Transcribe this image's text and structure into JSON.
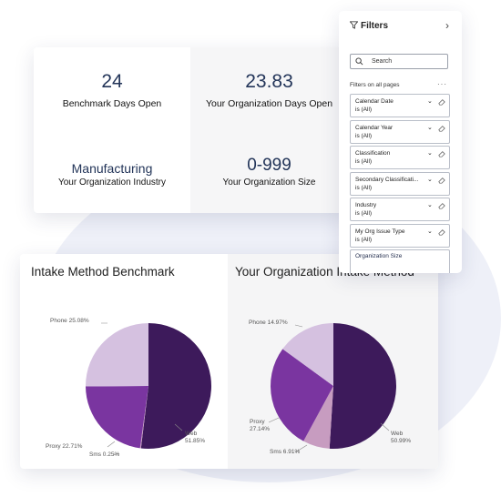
{
  "kpis": [
    {
      "value": "24",
      "label": "Benchmark Days Open"
    },
    {
      "value": "23.83",
      "label": "Your Organization Days Open"
    },
    {
      "value": "Manufacturing",
      "label": "Your Organization Industry"
    },
    {
      "value": "0-999",
      "label": "Your Organization Size"
    }
  ],
  "filters": {
    "title": "Filters",
    "search_placeholder": "Search",
    "subtitle": "Filters on all pages",
    "items": [
      {
        "name": "Calendar Date",
        "state": "is (All)"
      },
      {
        "name": "Calendar Year",
        "state": "is (All)"
      },
      {
        "name": "Classification",
        "state": "is (All)"
      },
      {
        "name": "Secondary Classificati...",
        "state": "is (All)"
      },
      {
        "name": "Industry",
        "state": "is (All)"
      },
      {
        "name": "My Org Issue Type",
        "state": "is (All)"
      },
      {
        "name": "Organization Size",
        "state": ""
      }
    ]
  },
  "chart_data": [
    {
      "type": "pie",
      "title": "Intake Method Benchmark",
      "slices": [
        {
          "label": "Web",
          "pct_text": "51.85%",
          "value": 51.85,
          "color": "#3d1a5b"
        },
        {
          "label": "Sms",
          "pct_text": "0.25%",
          "value": 0.25,
          "color": "#c79cc0"
        },
        {
          "label": "Proxy",
          "pct_text": "22.71%",
          "value": 22.71,
          "color": "#7a35a0"
        },
        {
          "label": "Phone",
          "pct_text": "25.08%",
          "value": 25.08,
          "color": "#d5c1e0"
        }
      ]
    },
    {
      "type": "pie",
      "title": "Your Organization Intake Method",
      "slices": [
        {
          "label": "Web",
          "pct_text": "50.99%",
          "value": 50.99,
          "color": "#3d1a5b"
        },
        {
          "label": "Sms",
          "pct_text": "6.91%",
          "value": 6.91,
          "color": "#c79cc0"
        },
        {
          "label": "Proxy",
          "pct_text": "27.14%",
          "value": 27.14,
          "color": "#7a35a0"
        },
        {
          "label": "Phone",
          "pct_text": "14.97%",
          "value": 14.97,
          "color": "#d5c1e0"
        }
      ]
    }
  ]
}
